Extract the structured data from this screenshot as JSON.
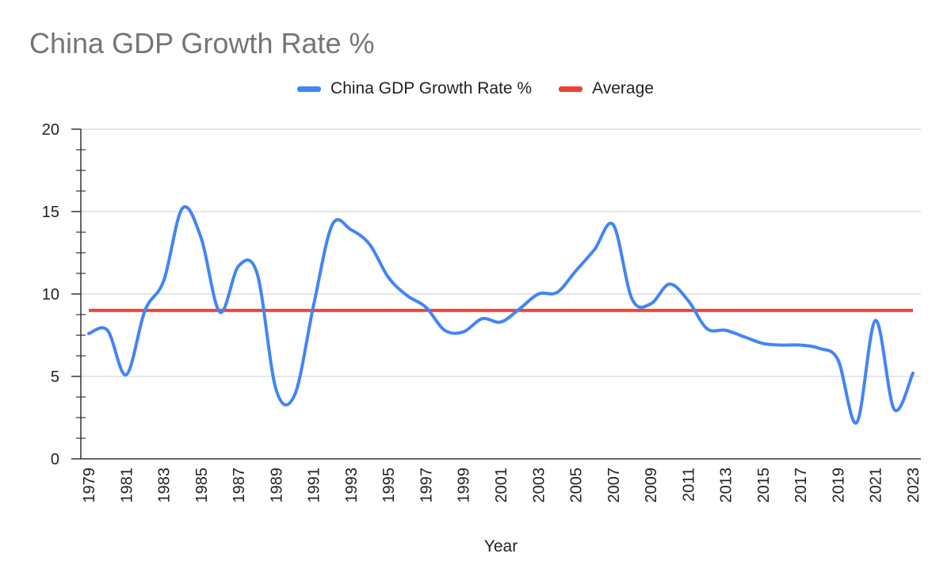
{
  "chart_data": {
    "type": "line",
    "title": "China GDP Growth Rate %",
    "xlabel": "Year",
    "ylabel": "",
    "ylim": [
      0,
      20
    ],
    "yticks": [
      0,
      5,
      10,
      15,
      20
    ],
    "x": [
      1979,
      1980,
      1981,
      1982,
      1983,
      1984,
      1985,
      1986,
      1987,
      1988,
      1989,
      1990,
      1991,
      1992,
      1993,
      1994,
      1995,
      1996,
      1997,
      1998,
      1999,
      2000,
      2001,
      2002,
      2003,
      2004,
      2005,
      2006,
      2007,
      2008,
      2009,
      2010,
      2011,
      2012,
      2013,
      2014,
      2015,
      2016,
      2017,
      2018,
      2019,
      2020,
      2021,
      2022,
      2023
    ],
    "xtick_labels": [
      "1979",
      "1981",
      "1983",
      "1985",
      "1987",
      "1989",
      "1991",
      "1993",
      "1995",
      "1997",
      "1999",
      "2001",
      "2003",
      "2005",
      "2007",
      "2009",
      "2011",
      "2013",
      "2015",
      "2017",
      "2019",
      "2021",
      "2023"
    ],
    "series": [
      {
        "name": "China GDP Growth Rate %",
        "color": "#4285f4",
        "values": [
          7.6,
          7.8,
          5.1,
          9.0,
          10.8,
          15.2,
          13.4,
          8.9,
          11.7,
          11.2,
          4.2,
          3.9,
          9.3,
          14.2,
          13.9,
          13.0,
          11.0,
          9.9,
          9.2,
          7.8,
          7.7,
          8.5,
          8.3,
          9.1,
          10.0,
          10.1,
          11.4,
          12.7,
          14.2,
          9.7,
          9.4,
          10.6,
          9.6,
          7.9,
          7.8,
          7.4,
          7.0,
          6.9,
          6.9,
          6.7,
          6.0,
          2.2,
          8.4,
          3.0,
          5.2
        ]
      },
      {
        "name": "Average",
        "color": "#ea4335",
        "values": [
          9.0,
          9.0,
          9.0,
          9.0,
          9.0,
          9.0,
          9.0,
          9.0,
          9.0,
          9.0,
          9.0,
          9.0,
          9.0,
          9.0,
          9.0,
          9.0,
          9.0,
          9.0,
          9.0,
          9.0,
          9.0,
          9.0,
          9.0,
          9.0,
          9.0,
          9.0,
          9.0,
          9.0,
          9.0,
          9.0,
          9.0,
          9.0,
          9.0,
          9.0,
          9.0,
          9.0,
          9.0,
          9.0,
          9.0,
          9.0,
          9.0,
          9.0,
          9.0,
          9.0,
          9.0
        ]
      }
    ],
    "grid": true,
    "legend_position": "top"
  }
}
